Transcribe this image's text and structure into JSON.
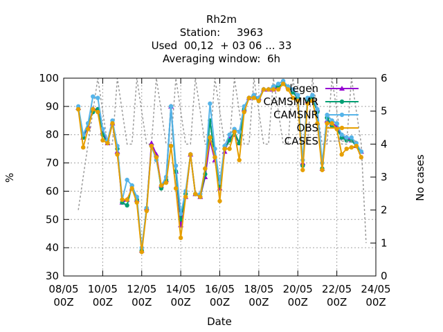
{
  "chart_data": {
    "type": "line",
    "title": [
      "Rh2m",
      "Station:     3963",
      "Used  00,12  + 03 06 ... 33",
      "Averaging window:  6h"
    ],
    "xlabel": "Date",
    "ylabel": "%",
    "y2label": "No cases",
    "xlim": [
      0,
      16
    ],
    "ylim": [
      30,
      100
    ],
    "y2lim": [
      0,
      6
    ],
    "x_ticks": [
      {
        "x": 0,
        "label": [
          "08/05",
          "00Z"
        ]
      },
      {
        "x": 2,
        "label": [
          "10/05",
          "00Z"
        ]
      },
      {
        "x": 4,
        "label": [
          "12/05",
          "00Z"
        ]
      },
      {
        "x": 6,
        "label": [
          "14/05",
          "00Z"
        ]
      },
      {
        "x": 8,
        "label": [
          "16/05",
          "00Z"
        ]
      },
      {
        "x": 10,
        "label": [
          "18/05",
          "00Z"
        ]
      },
      {
        "x": 12,
        "label": [
          "20/05",
          "00Z"
        ]
      },
      {
        "x": 14,
        "label": [
          "22/05",
          "00Z"
        ]
      },
      {
        "x": 16,
        "label": [
          "24/05",
          "00Z"
        ]
      }
    ],
    "y_ticks": [
      30,
      40,
      50,
      60,
      70,
      80,
      90,
      100
    ],
    "y2_ticks": [
      0,
      1,
      2,
      3,
      4,
      5,
      6
    ],
    "grid": true,
    "legend_position": "top-right",
    "x_index_note": "x values are in days since 08/05 00Z",
    "series": [
      {
        "name": "legen",
        "color": "#9400d3",
        "marker": "triangle",
        "x": [
          0.75,
          1.0,
          1.25,
          1.5,
          1.75,
          2.0,
          2.25,
          2.5,
          2.75,
          3.0,
          3.25,
          3.5,
          3.75,
          4.0,
          4.25,
          4.5,
          4.75,
          5.0,
          5.25,
          5.5,
          5.75,
          6.0,
          6.25,
          6.5,
          6.75,
          7.0,
          7.25,
          7.5,
          7.75,
          8.0,
          8.25,
          8.5,
          8.75,
          9.0,
          9.25,
          9.5,
          9.75,
          10.0,
          10.25,
          10.5,
          10.75,
          11.0,
          11.25,
          11.5,
          11.75,
          12.0,
          12.25,
          12.5,
          12.75,
          13.0,
          13.25,
          13.5,
          13.75,
          14.0,
          14.25,
          14.5,
          14.75,
          15.0,
          15.25,
          15.5
        ],
        "y": [
          89.5,
          79,
          83,
          89,
          89,
          81,
          77,
          84,
          74,
          56,
          57,
          61,
          57,
          39,
          54,
          77,
          73,
          62,
          64,
          90,
          67,
          48,
          58,
          73,
          59,
          58,
          65,
          78,
          71,
          61,
          74,
          79,
          80,
          77,
          89,
          93,
          94,
          93,
          96,
          96,
          96,
          97,
          98,
          97,
          95,
          93,
          70,
          92,
          93,
          89,
          68,
          85,
          84,
          83,
          79,
          79,
          78,
          76,
          74,
          null
        ]
      },
      {
        "name": "CAMSMMR",
        "color": "#009e73",
        "marker": "circle",
        "x": [
          0.75,
          1.0,
          1.25,
          1.5,
          1.75,
          2.0,
          2.25,
          2.5,
          2.75,
          3.0,
          3.25,
          3.5,
          3.75,
          4.0,
          4.25,
          4.5,
          4.75,
          5.0,
          5.25,
          5.5,
          5.75,
          6.0,
          6.25,
          6.5,
          6.75,
          7.0,
          7.25,
          7.5,
          7.75,
          8.0,
          8.25,
          8.5,
          8.75,
          9.0,
          9.25,
          9.5,
          9.75,
          10.0,
          10.25,
          10.5,
          10.75,
          11.0,
          11.25,
          11.5,
          11.75,
          12.0,
          12.25,
          12.5,
          12.75,
          13.0,
          13.25,
          13.5,
          13.75,
          14.0,
          14.25,
          14.5,
          14.75,
          15.0,
          15.25,
          15.5
        ],
        "y": [
          89,
          79,
          84,
          88,
          89,
          80,
          77,
          84,
          75,
          56,
          55,
          62,
          57,
          39,
          54,
          76,
          72,
          61,
          64,
          90,
          67,
          50,
          59,
          73,
          59,
          58,
          66,
          85,
          72,
          62,
          75,
          78,
          81,
          77,
          89,
          93,
          94,
          92,
          96,
          96,
          97,
          97,
          98,
          97,
          95,
          93,
          69,
          92,
          93,
          88,
          68,
          86,
          83,
          82,
          79,
          78,
          78,
          76,
          74,
          null
        ]
      },
      {
        "name": "CAMSNR",
        "color": "#56b4e9",
        "marker": "circle",
        "x": [
          0.75,
          1.0,
          1.25,
          1.5,
          1.75,
          2.0,
          2.25,
          2.5,
          2.75,
          3.0,
          3.25,
          3.5,
          3.75,
          4.0,
          4.25,
          4.5,
          4.75,
          5.0,
          5.25,
          5.5,
          5.75,
          6.0,
          6.25,
          6.5,
          6.75,
          7.0,
          7.25,
          7.5,
          7.75,
          8.0,
          8.25,
          8.5,
          8.75,
          9.0,
          9.25,
          9.5,
          9.75,
          10.0,
          10.25,
          10.5,
          10.75,
          11.0,
          11.25,
          11.5,
          11.75,
          12.0,
          12.25,
          12.5,
          12.75,
          13.0,
          13.25,
          13.5,
          13.75,
          14.0,
          14.25,
          14.5,
          14.75,
          15.0,
          15.25,
          15.5
        ],
        "y": [
          90,
          80,
          84,
          93.5,
          93,
          82,
          78,
          85,
          76,
          57,
          64,
          62,
          58,
          40,
          54,
          76,
          71,
          62,
          65,
          90,
          69,
          52,
          60,
          73,
          59,
          59,
          68,
          91,
          75,
          63,
          76,
          80,
          82,
          81,
          90,
          93,
          94,
          93,
          96,
          96,
          97,
          98,
          99,
          97,
          96,
          94,
          71,
          93,
          94,
          89,
          70,
          87,
          85,
          84,
          80,
          79,
          79,
          77,
          74,
          null
        ]
      },
      {
        "name": "OBS",
        "color": "#e69f00",
        "marker": "circle",
        "x": [
          0.75,
          1.0,
          1.25,
          1.5,
          1.75,
          2.0,
          2.25,
          2.5,
          2.75,
          3.0,
          3.25,
          3.5,
          3.75,
          4.0,
          4.25,
          4.5,
          4.75,
          5.0,
          5.25,
          5.5,
          5.75,
          6.0,
          6.25,
          6.5,
          6.75,
          7.0,
          7.25,
          7.5,
          7.75,
          8.0,
          8.25,
          8.5,
          8.75,
          9.0,
          9.25,
          9.5,
          9.75,
          10.0,
          10.25,
          10.5,
          10.75,
          11.0,
          11.25,
          11.5,
          11.75,
          12.0,
          12.25,
          12.5,
          12.75,
          13.0,
          13.25,
          13.5,
          13.75,
          14.0,
          14.25,
          14.5,
          14.75,
          15.0,
          15.25,
          15.5
        ],
        "y": [
          89,
          75.5,
          82,
          89,
          88,
          78,
          77,
          84,
          73,
          57,
          57,
          61,
          56,
          38.5,
          53,
          76,
          72,
          62,
          63,
          76,
          61,
          43.5,
          58,
          73,
          59,
          58,
          68,
          79,
          72,
          56.5,
          75,
          75,
          81,
          71,
          88,
          93,
          93,
          92,
          96,
          96,
          96,
          96,
          98,
          96,
          93,
          92,
          67.5,
          91,
          92,
          84,
          67.5,
          84,
          84,
          82,
          73,
          75,
          75.5,
          76,
          72,
          null
        ]
      },
      {
        "name": "CASES",
        "color": "#999999",
        "marker": "none",
        "axis": "y2",
        "x": [
          0.75,
          1.0,
          1.25,
          1.5,
          1.75,
          2.0,
          2.25,
          2.5,
          2.75,
          3.0,
          3.25,
          3.5,
          3.75,
          4.0,
          4.25,
          4.5,
          4.75,
          5.0,
          5.25,
          5.5,
          5.75,
          6.0,
          6.25,
          6.5,
          6.75,
          7.0,
          7.25,
          7.5,
          7.75,
          8.0,
          8.25,
          8.5,
          8.75,
          9.0,
          9.25,
          9.5,
          9.75,
          10.0,
          10.25,
          10.5,
          10.75,
          11.0,
          11.25,
          11.5,
          11.75,
          12.0,
          12.25,
          12.5,
          12.75,
          13.0,
          13.25,
          13.5,
          13.75,
          14.0,
          14.25,
          14.5,
          14.75,
          15.0,
          15.25,
          15.5
        ],
        "y": [
          2,
          3,
          4,
          5,
          6,
          5,
          4,
          4,
          6,
          5,
          4,
          4,
          6,
          5,
          4,
          4,
          6,
          5,
          4,
          4,
          6,
          5,
          4,
          4,
          6,
          5,
          4,
          4,
          6,
          5,
          4,
          4,
          6,
          5,
          4,
          4,
          6,
          5,
          4,
          4,
          6,
          5,
          4,
          4,
          6,
          5,
          4,
          4,
          6,
          5,
          4,
          4,
          6,
          5,
          4,
          4,
          6,
          5,
          4,
          1
        ]
      }
    ]
  }
}
